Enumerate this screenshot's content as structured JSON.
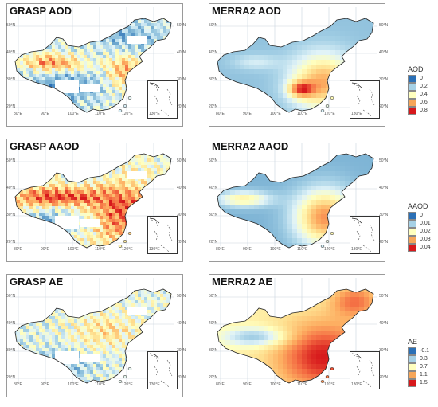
{
  "panels": [
    {
      "title": "GRASP AOD",
      "scheme": "grasp_aod"
    },
    {
      "title": "MERRA2 AOD",
      "scheme": "merra_aod"
    },
    {
      "title": "GRASP AAOD",
      "scheme": "grasp_aaod"
    },
    {
      "title": "MERRA2 AAOD",
      "scheme": "merra_aaod"
    },
    {
      "title": "GRASP AE",
      "scheme": "grasp_ae"
    },
    {
      "title": "MERRA2 AE",
      "scheme": "merra_ae"
    }
  ],
  "axes": {
    "lon_labels": [
      "80°E",
      "90°E",
      "100°E",
      "110°E",
      "120°E",
      "130°E"
    ],
    "lat_labels": [
      "50°N",
      "40°N",
      "30°N",
      "20°N"
    ]
  },
  "legends": [
    {
      "title": "AOD",
      "labels": [
        "0",
        "0.2",
        "0.4",
        "0.6",
        "0.8"
      ],
      "colors": [
        "#2b70b6",
        "#a6d1e6",
        "#ffffbf",
        "#f6a65a",
        "#d7191c"
      ]
    },
    {
      "title": "AAOD",
      "labels": [
        "0",
        "0.01",
        "0.02",
        "0.03",
        "0.04"
      ],
      "colors": [
        "#2b70b6",
        "#a6d1e6",
        "#ffffbf",
        "#f6a65a",
        "#d7191c"
      ]
    },
    {
      "title": "AE",
      "labels": [
        "-0.1",
        "0.3",
        "0.7",
        "1.1",
        "1.5"
      ],
      "colors": [
        "#2b70b6",
        "#a6d1e6",
        "#ffffbf",
        "#f6a65a",
        "#d7191c"
      ]
    }
  ]
}
